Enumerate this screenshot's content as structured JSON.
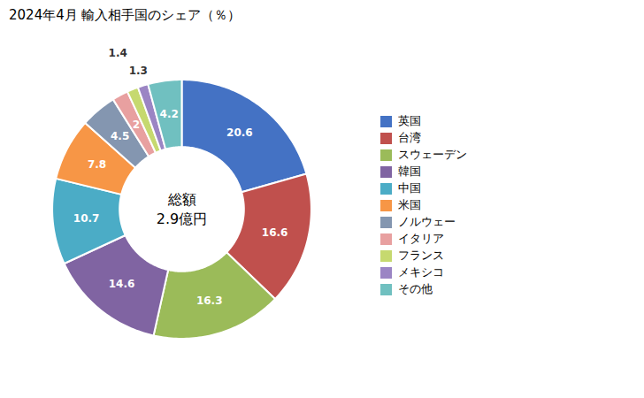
{
  "chart_data": {
    "type": "pie",
    "title": "2024年4月 輸入相手国のシェア（％）",
    "annotations": [
      "総額",
      "2.9億円"
    ],
    "categories": [
      "英国",
      "台湾",
      "スウェーデン",
      "韓国",
      "中国",
      "米国",
      "ノルウェー",
      "イタリア",
      "フランス",
      "メキシコ",
      "その他"
    ],
    "values": [
      20.6,
      16.6,
      16.3,
      14.6,
      10.7,
      7.8,
      4.5,
      2.0,
      1.4,
      1.3,
      4.2
    ],
    "colors": [
      "#4472C4",
      "#C0504D",
      "#9BBB59",
      "#8064A2",
      "#4BACC6",
      "#F79646",
      "#8496B0",
      "#E8A0A0",
      "#C6D96F",
      "#9B85C4",
      "#70C0C0"
    ],
    "data_labels": true,
    "legend": "right"
  }
}
